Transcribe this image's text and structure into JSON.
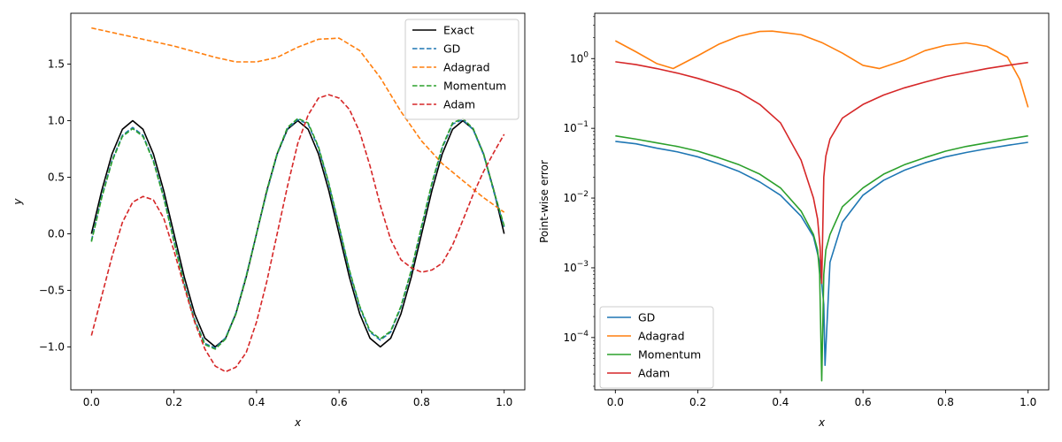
{
  "chart_data": [
    {
      "type": "line",
      "xlabel": "x",
      "ylabel": "y",
      "xlim": [
        -0.05,
        1.05
      ],
      "ylim": [
        -1.38,
        1.95
      ],
      "xticks": [
        "0.0",
        "0.2",
        "0.4",
        "0.6",
        "0.8",
        "1.0"
      ],
      "yticks": [
        "−1.0",
        "−0.5",
        "0.0",
        "0.5",
        "1.0",
        "1.5"
      ],
      "grid": false,
      "legend_position": "top-right",
      "series": [
        {
          "name": "Exact",
          "color": "#000000",
          "style": "solid",
          "x": [
            0,
            0.025,
            0.05,
            0.075,
            0.1,
            0.125,
            0.15,
            0.175,
            0.2,
            0.225,
            0.25,
            0.275,
            0.3,
            0.325,
            0.35,
            0.375,
            0.4,
            0.425,
            0.45,
            0.475,
            0.5,
            0.525,
            0.55,
            0.575,
            0.6,
            0.625,
            0.65,
            0.675,
            0.7,
            0.725,
            0.75,
            0.775,
            0.8,
            0.825,
            0.85,
            0.875,
            0.9,
            0.925,
            0.95,
            0.975,
            1
          ],
          "y": [
            0,
            0.383,
            0.707,
            0.924,
            1,
            0.924,
            0.707,
            0.383,
            0,
            -0.383,
            -0.707,
            -0.924,
            -1,
            -0.924,
            -0.707,
            -0.383,
            0,
            0.383,
            0.707,
            0.924,
            1,
            0.924,
            0.707,
            0.383,
            0,
            -0.383,
            -0.707,
            -0.924,
            -1,
            -0.924,
            -0.707,
            -0.383,
            0,
            0.383,
            0.707,
            0.924,
            1,
            0.924,
            0.707,
            0.383,
            0
          ]
        },
        {
          "name": "GD",
          "color": "#1f77b4",
          "style": "dashed",
          "x": [
            0,
            0.025,
            0.05,
            0.075,
            0.1,
            0.125,
            0.15,
            0.175,
            0.2,
            0.225,
            0.25,
            0.275,
            0.3,
            0.325,
            0.35,
            0.375,
            0.4,
            0.425,
            0.45,
            0.475,
            0.5,
            0.525,
            0.55,
            0.575,
            0.6,
            0.625,
            0.65,
            0.675,
            0.7,
            0.725,
            0.75,
            0.775,
            0.8,
            0.825,
            0.85,
            0.875,
            0.9,
            0.925,
            0.95,
            0.975,
            1
          ],
          "y": [
            -0.06,
            0.33,
            0.65,
            0.87,
            0.94,
            0.87,
            0.65,
            0.33,
            -0.06,
            -0.44,
            -0.76,
            -0.97,
            -1.01,
            -0.92,
            -0.7,
            -0.37,
            0.0,
            0.37,
            0.7,
            0.93,
            1.01,
            0.97,
            0.76,
            0.44,
            0.06,
            -0.33,
            -0.65,
            -0.87,
            -0.94,
            -0.87,
            -0.65,
            -0.33,
            0.06,
            0.44,
            0.76,
            0.97,
            1.01,
            0.92,
            0.7,
            0.37,
            0.06
          ]
        },
        {
          "name": "Adagrad",
          "color": "#ff7f0e",
          "style": "dashed",
          "x": [
            0,
            0.05,
            0.1,
            0.15,
            0.2,
            0.25,
            0.3,
            0.35,
            0.4,
            0.45,
            0.5,
            0.55,
            0.6,
            0.65,
            0.7,
            0.75,
            0.8,
            0.85,
            0.9,
            0.95,
            1
          ],
          "y": [
            1.82,
            1.78,
            1.74,
            1.7,
            1.66,
            1.61,
            1.56,
            1.52,
            1.52,
            1.56,
            1.65,
            1.72,
            1.73,
            1.62,
            1.38,
            1.08,
            0.82,
            0.62,
            0.47,
            0.32,
            0.19
          ]
        },
        {
          "name": "Momentum",
          "color": "#2ca02c",
          "style": "dashed",
          "x": [
            0,
            0.025,
            0.05,
            0.075,
            0.1,
            0.125,
            0.15,
            0.175,
            0.2,
            0.225,
            0.25,
            0.275,
            0.3,
            0.325,
            0.35,
            0.375,
            0.4,
            0.425,
            0.45,
            0.475,
            0.5,
            0.525,
            0.55,
            0.575,
            0.6,
            0.625,
            0.65,
            0.675,
            0.7,
            0.725,
            0.75,
            0.775,
            0.8,
            0.825,
            0.85,
            0.875,
            0.9,
            0.925,
            0.95,
            0.975,
            1
          ],
          "y": [
            -0.07,
            0.32,
            0.64,
            0.86,
            0.93,
            0.86,
            0.64,
            0.32,
            -0.07,
            -0.45,
            -0.77,
            -0.98,
            -1.02,
            -0.93,
            -0.71,
            -0.38,
            0.0,
            0.38,
            0.71,
            0.94,
            1.02,
            0.98,
            0.77,
            0.45,
            0.07,
            -0.32,
            -0.64,
            -0.86,
            -0.93,
            -0.86,
            -0.64,
            -0.32,
            0.07,
            0.45,
            0.77,
            0.98,
            1.02,
            0.93,
            0.71,
            0.38,
            0.07
          ]
        },
        {
          "name": "Adam",
          "color": "#d62728",
          "style": "dashed",
          "x": [
            0,
            0.025,
            0.05,
            0.075,
            0.1,
            0.125,
            0.15,
            0.175,
            0.2,
            0.225,
            0.25,
            0.275,
            0.3,
            0.325,
            0.35,
            0.375,
            0.4,
            0.425,
            0.45,
            0.475,
            0.5,
            0.525,
            0.55,
            0.575,
            0.6,
            0.625,
            0.65,
            0.675,
            0.7,
            0.725,
            0.75,
            0.775,
            0.8,
            0.825,
            0.85,
            0.875,
            0.9,
            0.925,
            0.95,
            0.975,
            1
          ],
          "y": [
            -0.9,
            -0.55,
            -0.2,
            0.1,
            0.28,
            0.33,
            0.3,
            0.14,
            -0.15,
            -0.47,
            -0.78,
            -1.02,
            -1.17,
            -1.22,
            -1.18,
            -1.05,
            -0.78,
            -0.42,
            0.0,
            0.42,
            0.8,
            1.05,
            1.2,
            1.23,
            1.2,
            1.1,
            0.9,
            0.6,
            0.25,
            -0.05,
            -0.23,
            -0.3,
            -0.34,
            -0.32,
            -0.26,
            -0.1,
            0.12,
            0.35,
            0.55,
            0.72,
            0.88
          ]
        }
      ]
    },
    {
      "type": "line",
      "xlabel": "x",
      "ylabel": "Point-wise error",
      "yscale": "log",
      "xlim": [
        -0.05,
        1.05
      ],
      "ylim_log10": [
        -4.75,
        0.65
      ],
      "xticks": [
        "0.0",
        "0.2",
        "0.4",
        "0.6",
        "0.8",
        "1.0"
      ],
      "yticks": [
        {
          "base": "10",
          "exp": "−4",
          "log": -4
        },
        {
          "base": "10",
          "exp": "−3",
          "log": -3
        },
        {
          "base": "10",
          "exp": "−2",
          "log": -2
        },
        {
          "base": "10",
          "exp": "−1",
          "log": -1
        },
        {
          "base": "10",
          "exp": "0",
          "log": 0
        }
      ],
      "grid": false,
      "legend_position": "bottom-left",
      "series": [
        {
          "name": "GD",
          "color": "#1f77b4",
          "style": "solid",
          "x": [
            0,
            0.05,
            0.1,
            0.15,
            0.2,
            0.25,
            0.3,
            0.35,
            0.4,
            0.45,
            0.48,
            0.495,
            0.505,
            0.508,
            0.52,
            0.55,
            0.6,
            0.65,
            0.7,
            0.75,
            0.8,
            0.85,
            0.9,
            0.95,
            1
          ],
          "y": [
            0.065,
            0.06,
            0.052,
            0.046,
            0.039,
            0.031,
            0.024,
            0.017,
            0.011,
            0.0055,
            0.0028,
            0.0012,
            0.0003,
            4e-05,
            0.0012,
            0.0045,
            0.011,
            0.018,
            0.025,
            0.032,
            0.039,
            0.045,
            0.051,
            0.057,
            0.063
          ]
        },
        {
          "name": "Adagrad",
          "color": "#ff7f0e",
          "style": "solid",
          "x": [
            0,
            0.05,
            0.1,
            0.14,
            0.2,
            0.25,
            0.3,
            0.35,
            0.38,
            0.45,
            0.5,
            0.55,
            0.6,
            0.64,
            0.7,
            0.75,
            0.8,
            0.85,
            0.9,
            0.95,
            0.98,
            1
          ],
          "y": [
            1.8,
            1.25,
            0.85,
            0.72,
            1.1,
            1.6,
            2.1,
            2.45,
            2.48,
            2.2,
            1.7,
            1.2,
            0.8,
            0.72,
            0.95,
            1.3,
            1.55,
            1.68,
            1.5,
            1.05,
            0.5,
            0.2
          ]
        },
        {
          "name": "Momentum",
          "color": "#2ca02c",
          "style": "solid",
          "x": [
            0,
            0.05,
            0.1,
            0.15,
            0.2,
            0.25,
            0.3,
            0.35,
            0.4,
            0.45,
            0.48,
            0.49,
            0.495,
            0.5,
            0.505,
            0.51,
            0.52,
            0.55,
            0.6,
            0.65,
            0.7,
            0.75,
            0.8,
            0.85,
            0.9,
            0.95,
            1
          ],
          "y": [
            0.078,
            0.07,
            0.062,
            0.055,
            0.047,
            0.038,
            0.03,
            0.022,
            0.014,
            0.0065,
            0.003,
            0.0018,
            0.0008,
            2.4e-05,
            0.0008,
            0.0018,
            0.003,
            0.0075,
            0.014,
            0.022,
            0.03,
            0.038,
            0.047,
            0.055,
            0.062,
            0.07,
            0.078
          ]
        },
        {
          "name": "Adam",
          "color": "#d62728",
          "style": "solid",
          "x": [
            0,
            0.05,
            0.1,
            0.15,
            0.2,
            0.25,
            0.3,
            0.35,
            0.4,
            0.45,
            0.48,
            0.49,
            0.496,
            0.5,
            0.505,
            0.51,
            0.52,
            0.55,
            0.6,
            0.65,
            0.7,
            0.75,
            0.8,
            0.85,
            0.9,
            0.95,
            1
          ],
          "y": [
            0.9,
            0.82,
            0.72,
            0.62,
            0.52,
            0.42,
            0.33,
            0.22,
            0.12,
            0.035,
            0.01,
            0.005,
            0.002,
            0.0006,
            0.02,
            0.04,
            0.07,
            0.14,
            0.22,
            0.3,
            0.38,
            0.46,
            0.55,
            0.63,
            0.72,
            0.8,
            0.88
          ]
        }
      ]
    }
  ]
}
